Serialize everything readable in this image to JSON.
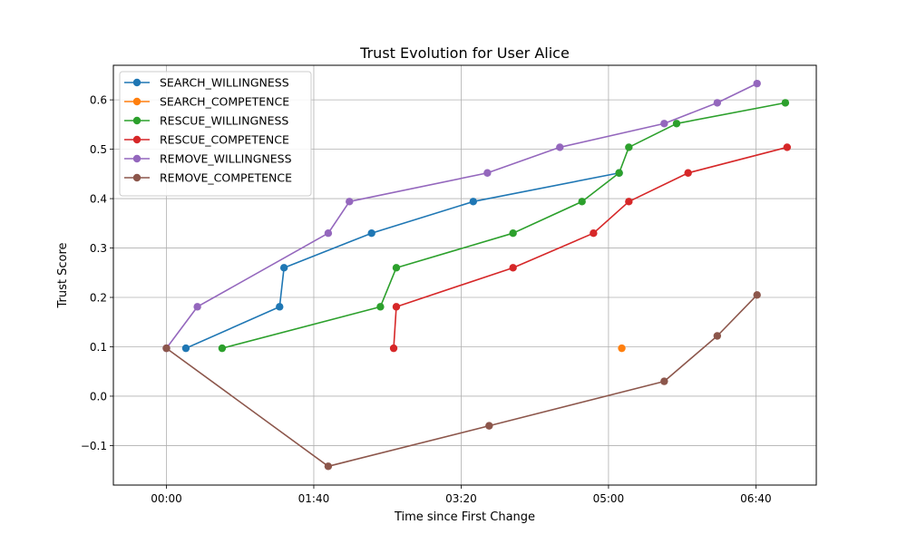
{
  "chart_data": {
    "type": "line",
    "title": "Trust Evolution for User Alice",
    "xlabel": "Time since First Change",
    "ylabel": "Trust Score",
    "x_unit": "minutes (mm:ss)",
    "xlim": [
      -0.6,
      7.35
    ],
    "ylim": [
      -0.18,
      0.67
    ],
    "x_ticks": [
      0,
      1.6667,
      3.3333,
      5.0,
      6.6667
    ],
    "x_tick_labels": [
      "00:00",
      "01:40",
      "03:20",
      "05:00",
      "06:40"
    ],
    "y_ticks": [
      -0.1,
      0.0,
      0.1,
      0.2,
      0.3,
      0.4,
      0.5,
      0.6
    ],
    "y_tick_labels": [
      "−0.1",
      "0.0",
      "0.1",
      "0.2",
      "0.3",
      "0.4",
      "0.5",
      "0.6"
    ],
    "grid": true,
    "legend_position": "top-left",
    "series": [
      {
        "name": "SEARCH_WILLINGNESS",
        "color": "#1f77b4",
        "points": [
          [
            0.22,
            0.097
          ],
          [
            1.28,
            0.181
          ],
          [
            1.33,
            0.26
          ],
          [
            2.32,
            0.33
          ],
          [
            3.47,
            0.394
          ],
          [
            5.12,
            0.452
          ]
        ]
      },
      {
        "name": "SEARCH_COMPETENCE",
        "color": "#ff7f0e",
        "points": [
          [
            5.15,
            0.097
          ]
        ]
      },
      {
        "name": "RESCUE_WILLINGNESS",
        "color": "#2ca02c",
        "points": [
          [
            0.63,
            0.097
          ],
          [
            2.42,
            0.181
          ],
          [
            2.6,
            0.26
          ],
          [
            3.92,
            0.33
          ],
          [
            4.7,
            0.394
          ],
          [
            5.12,
            0.452
          ],
          [
            5.23,
            0.504
          ],
          [
            5.77,
            0.552
          ],
          [
            7.0,
            0.594
          ]
        ]
      },
      {
        "name": "RESCUE_COMPETENCE",
        "color": "#d62728",
        "points": [
          [
            2.57,
            0.097
          ],
          [
            2.6,
            0.181
          ],
          [
            3.92,
            0.26
          ],
          [
            4.83,
            0.33
          ],
          [
            5.23,
            0.394
          ],
          [
            5.9,
            0.452
          ],
          [
            7.02,
            0.504
          ]
        ]
      },
      {
        "name": "REMOVE_WILLINGNESS",
        "color": "#9467bd",
        "points": [
          [
            0.0,
            0.097
          ],
          [
            0.35,
            0.181
          ],
          [
            1.83,
            0.33
          ],
          [
            2.07,
            0.394
          ],
          [
            3.63,
            0.452
          ],
          [
            4.45,
            0.504
          ],
          [
            5.63,
            0.552
          ],
          [
            6.23,
            0.594
          ],
          [
            6.68,
            0.633
          ]
        ]
      },
      {
        "name": "REMOVE_COMPETENCE",
        "color": "#8c564b",
        "points": [
          [
            0.0,
            0.097
          ],
          [
            1.83,
            -0.142
          ],
          [
            3.65,
            -0.06
          ],
          [
            5.63,
            0.03
          ],
          [
            6.23,
            0.122
          ],
          [
            6.68,
            0.205
          ]
        ]
      }
    ]
  }
}
